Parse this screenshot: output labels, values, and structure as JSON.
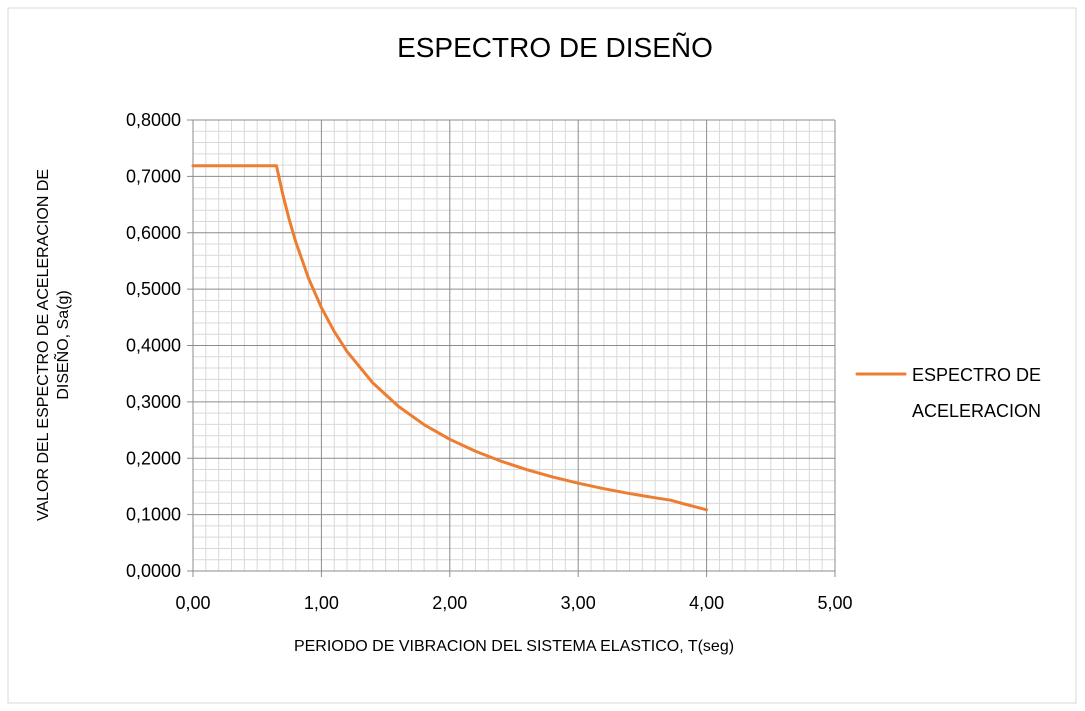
{
  "chart_data": {
    "type": "line",
    "title": "ESPECTRO DE DISEÑO",
    "xlabel": "PERIODO DE VIBRACION DEL SISTEMA ELASTICO, T(seg)",
    "ylabel_line1": "VALOR   DEL ESPECTRO DE ACELERACION DE",
    "ylabel_line2": "DISEÑO, Sa(g)",
    "xlim": [
      0,
      5
    ],
    "ylim": [
      0,
      0.8
    ],
    "x_ticks": [
      "0,00",
      "1,00",
      "2,00",
      "3,00",
      "4,00",
      "5,00"
    ],
    "y_ticks": [
      "0,0000",
      "0,1000",
      "0,2000",
      "0,3000",
      "0,4000",
      "0,5000",
      "0,6000",
      "0,7000",
      "0,8000"
    ],
    "grid": true,
    "legend_position": "right",
    "legend_lines": [
      "ESPECTRO DE",
      "ACELERACION"
    ],
    "series": [
      {
        "name": "ESPECTRO DE ACELERACION",
        "color": "#ED7D31",
        "x": [
          0.0,
          0.1,
          0.2,
          0.3,
          0.4,
          0.5,
          0.6,
          0.65,
          0.7,
          0.75,
          0.8,
          0.9,
          1.0,
          1.1,
          1.2,
          1.4,
          1.6,
          1.8,
          2.0,
          2.2,
          2.4,
          2.6,
          2.8,
          3.0,
          3.2,
          3.4,
          3.6,
          3.72,
          3.8,
          4.0
        ],
        "y": [
          0.7188,
          0.7188,
          0.7188,
          0.7188,
          0.7188,
          0.7188,
          0.7188,
          0.7188,
          0.6674,
          0.6229,
          0.584,
          0.5191,
          0.4672,
          0.4247,
          0.3893,
          0.3337,
          0.292,
          0.2595,
          0.2336,
          0.2124,
          0.1947,
          0.1797,
          0.1669,
          0.1557,
          0.146,
          0.1374,
          0.1298,
          0.1256,
          0.1204,
          0.1086
        ]
      }
    ]
  }
}
